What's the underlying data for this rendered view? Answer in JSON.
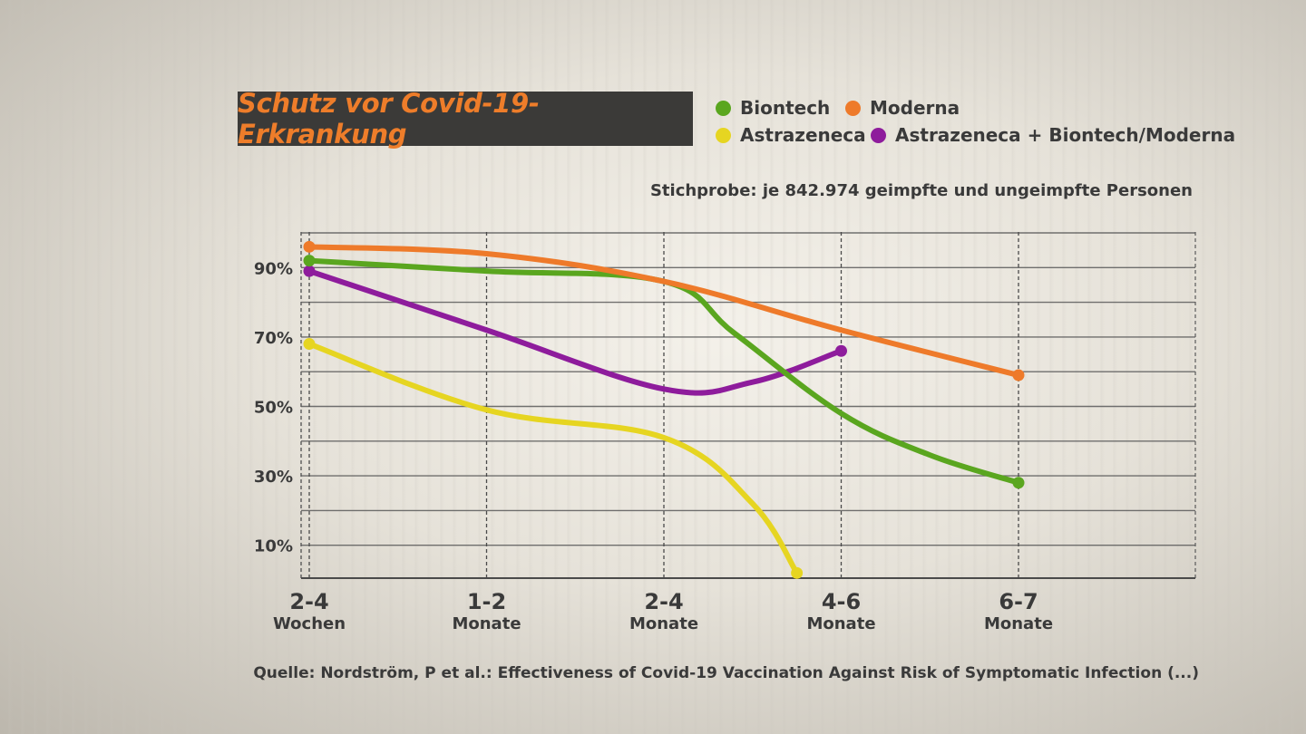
{
  "chart_data": {
    "type": "line",
    "title": "Schutz vor Covid-19-Erkrankung",
    "subtitle": "Stichprobe: je 842.974 geimpfte und ungeimpfte Personen",
    "source": "Quelle: Nordström, P et al.: Effectiveness of Covid-19 Vaccination Against Risk of Symptomatic Infection (...)",
    "categories": [
      {
        "main": "2-4",
        "sub": "Wochen"
      },
      {
        "main": "1-2",
        "sub": "Monate"
      },
      {
        "main": "2-4",
        "sub": "Monate"
      },
      {
        "main": "4-6",
        "sub": "Monate"
      },
      {
        "main": "6-7",
        "sub": "Monate"
      }
    ],
    "yticks": [
      "90%",
      "70%",
      "50%",
      "30%",
      "10%"
    ],
    "ytick_values": [
      90,
      70,
      50,
      30,
      10
    ],
    "ylim": [
      0,
      100
    ],
    "grid": true,
    "legend_placement": "top",
    "series": [
      {
        "name": "Biontech",
        "color": "#5aa61f",
        "points": [
          [
            0,
            92
          ],
          [
            1,
            89
          ],
          [
            2,
            86
          ],
          [
            2.4,
            71
          ],
          [
            3,
            48
          ],
          [
            3.5,
            36
          ],
          [
            4,
            28
          ]
        ],
        "end_markers": [
          [
            0,
            92
          ],
          [
            4,
            28
          ]
        ]
      },
      {
        "name": "Moderna",
        "color": "#ee7a2a",
        "points": [
          [
            0,
            96
          ],
          [
            1,
            94
          ],
          [
            2,
            86
          ],
          [
            3,
            72
          ],
          [
            4,
            59
          ]
        ],
        "end_markers": [
          [
            0,
            96
          ],
          [
            4,
            59
          ]
        ]
      },
      {
        "name": "Astrazeneca",
        "color": "#e6d521",
        "points": [
          [
            0,
            68
          ],
          [
            1,
            49
          ],
          [
            2,
            41
          ],
          [
            2.5,
            22
          ],
          [
            2.75,
            2
          ]
        ],
        "end_markers": [
          [
            0,
            68
          ],
          [
            2.75,
            2
          ]
        ]
      },
      {
        "name": "Astrazeneca + Biontech/Moderna",
        "color": "#8e1c9c",
        "points": [
          [
            0,
            89
          ],
          [
            1,
            72
          ],
          [
            2,
            55
          ],
          [
            2.5,
            57
          ],
          [
            3,
            66
          ]
        ],
        "end_markers": [
          [
            0,
            89
          ],
          [
            3,
            66
          ]
        ]
      }
    ]
  }
}
